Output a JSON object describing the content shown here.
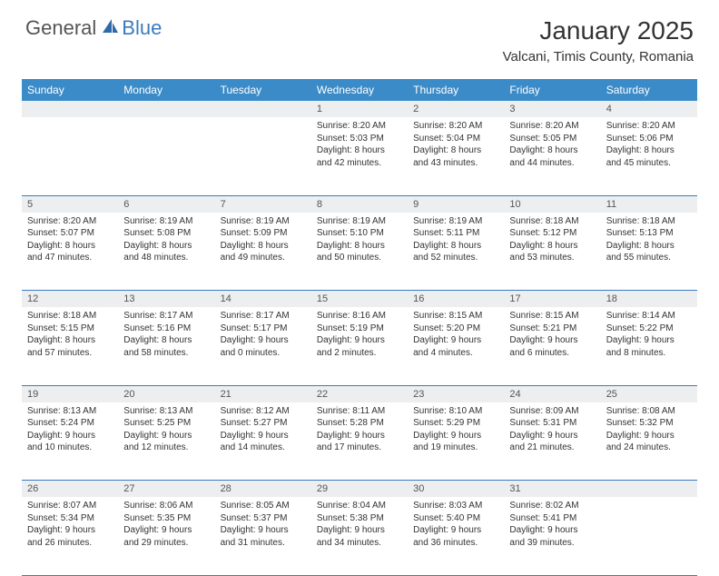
{
  "brand": {
    "general": "General",
    "blue": "Blue"
  },
  "title": "January 2025",
  "location": "Valcani, Timis County, Romania",
  "colors": {
    "header_bg": "#3b8bc8",
    "header_text": "#ffffff",
    "daynum_bg": "#eceef0",
    "border": "#3b7bbf",
    "brand_blue": "#3b7bbf",
    "text": "#333333"
  },
  "fonts": {
    "title_size": 28,
    "location_size": 15,
    "day_header_size": 12,
    "cell_size": 10
  },
  "day_headers": [
    "Sunday",
    "Monday",
    "Tuesday",
    "Wednesday",
    "Thursday",
    "Friday",
    "Saturday"
  ],
  "weeks": [
    [
      null,
      null,
      null,
      {
        "n": "1",
        "sr": "Sunrise: 8:20 AM",
        "ss": "Sunset: 5:03 PM",
        "d1": "Daylight: 8 hours",
        "d2": "and 42 minutes."
      },
      {
        "n": "2",
        "sr": "Sunrise: 8:20 AM",
        "ss": "Sunset: 5:04 PM",
        "d1": "Daylight: 8 hours",
        "d2": "and 43 minutes."
      },
      {
        "n": "3",
        "sr": "Sunrise: 8:20 AM",
        "ss": "Sunset: 5:05 PM",
        "d1": "Daylight: 8 hours",
        "d2": "and 44 minutes."
      },
      {
        "n": "4",
        "sr": "Sunrise: 8:20 AM",
        "ss": "Sunset: 5:06 PM",
        "d1": "Daylight: 8 hours",
        "d2": "and 45 minutes."
      }
    ],
    [
      {
        "n": "5",
        "sr": "Sunrise: 8:20 AM",
        "ss": "Sunset: 5:07 PM",
        "d1": "Daylight: 8 hours",
        "d2": "and 47 minutes."
      },
      {
        "n": "6",
        "sr": "Sunrise: 8:19 AM",
        "ss": "Sunset: 5:08 PM",
        "d1": "Daylight: 8 hours",
        "d2": "and 48 minutes."
      },
      {
        "n": "7",
        "sr": "Sunrise: 8:19 AM",
        "ss": "Sunset: 5:09 PM",
        "d1": "Daylight: 8 hours",
        "d2": "and 49 minutes."
      },
      {
        "n": "8",
        "sr": "Sunrise: 8:19 AM",
        "ss": "Sunset: 5:10 PM",
        "d1": "Daylight: 8 hours",
        "d2": "and 50 minutes."
      },
      {
        "n": "9",
        "sr": "Sunrise: 8:19 AM",
        "ss": "Sunset: 5:11 PM",
        "d1": "Daylight: 8 hours",
        "d2": "and 52 minutes."
      },
      {
        "n": "10",
        "sr": "Sunrise: 8:18 AM",
        "ss": "Sunset: 5:12 PM",
        "d1": "Daylight: 8 hours",
        "d2": "and 53 minutes."
      },
      {
        "n": "11",
        "sr": "Sunrise: 8:18 AM",
        "ss": "Sunset: 5:13 PM",
        "d1": "Daylight: 8 hours",
        "d2": "and 55 minutes."
      }
    ],
    [
      {
        "n": "12",
        "sr": "Sunrise: 8:18 AM",
        "ss": "Sunset: 5:15 PM",
        "d1": "Daylight: 8 hours",
        "d2": "and 57 minutes."
      },
      {
        "n": "13",
        "sr": "Sunrise: 8:17 AM",
        "ss": "Sunset: 5:16 PM",
        "d1": "Daylight: 8 hours",
        "d2": "and 58 minutes."
      },
      {
        "n": "14",
        "sr": "Sunrise: 8:17 AM",
        "ss": "Sunset: 5:17 PM",
        "d1": "Daylight: 9 hours",
        "d2": "and 0 minutes."
      },
      {
        "n": "15",
        "sr": "Sunrise: 8:16 AM",
        "ss": "Sunset: 5:19 PM",
        "d1": "Daylight: 9 hours",
        "d2": "and 2 minutes."
      },
      {
        "n": "16",
        "sr": "Sunrise: 8:15 AM",
        "ss": "Sunset: 5:20 PM",
        "d1": "Daylight: 9 hours",
        "d2": "and 4 minutes."
      },
      {
        "n": "17",
        "sr": "Sunrise: 8:15 AM",
        "ss": "Sunset: 5:21 PM",
        "d1": "Daylight: 9 hours",
        "d2": "and 6 minutes."
      },
      {
        "n": "18",
        "sr": "Sunrise: 8:14 AM",
        "ss": "Sunset: 5:22 PM",
        "d1": "Daylight: 9 hours",
        "d2": "and 8 minutes."
      }
    ],
    [
      {
        "n": "19",
        "sr": "Sunrise: 8:13 AM",
        "ss": "Sunset: 5:24 PM",
        "d1": "Daylight: 9 hours",
        "d2": "and 10 minutes."
      },
      {
        "n": "20",
        "sr": "Sunrise: 8:13 AM",
        "ss": "Sunset: 5:25 PM",
        "d1": "Daylight: 9 hours",
        "d2": "and 12 minutes."
      },
      {
        "n": "21",
        "sr": "Sunrise: 8:12 AM",
        "ss": "Sunset: 5:27 PM",
        "d1": "Daylight: 9 hours",
        "d2": "and 14 minutes."
      },
      {
        "n": "22",
        "sr": "Sunrise: 8:11 AM",
        "ss": "Sunset: 5:28 PM",
        "d1": "Daylight: 9 hours",
        "d2": "and 17 minutes."
      },
      {
        "n": "23",
        "sr": "Sunrise: 8:10 AM",
        "ss": "Sunset: 5:29 PM",
        "d1": "Daylight: 9 hours",
        "d2": "and 19 minutes."
      },
      {
        "n": "24",
        "sr": "Sunrise: 8:09 AM",
        "ss": "Sunset: 5:31 PM",
        "d1": "Daylight: 9 hours",
        "d2": "and 21 minutes."
      },
      {
        "n": "25",
        "sr": "Sunrise: 8:08 AM",
        "ss": "Sunset: 5:32 PM",
        "d1": "Daylight: 9 hours",
        "d2": "and 24 minutes."
      }
    ],
    [
      {
        "n": "26",
        "sr": "Sunrise: 8:07 AM",
        "ss": "Sunset: 5:34 PM",
        "d1": "Daylight: 9 hours",
        "d2": "and 26 minutes."
      },
      {
        "n": "27",
        "sr": "Sunrise: 8:06 AM",
        "ss": "Sunset: 5:35 PM",
        "d1": "Daylight: 9 hours",
        "d2": "and 29 minutes."
      },
      {
        "n": "28",
        "sr": "Sunrise: 8:05 AM",
        "ss": "Sunset: 5:37 PM",
        "d1": "Daylight: 9 hours",
        "d2": "and 31 minutes."
      },
      {
        "n": "29",
        "sr": "Sunrise: 8:04 AM",
        "ss": "Sunset: 5:38 PM",
        "d1": "Daylight: 9 hours",
        "d2": "and 34 minutes."
      },
      {
        "n": "30",
        "sr": "Sunrise: 8:03 AM",
        "ss": "Sunset: 5:40 PM",
        "d1": "Daylight: 9 hours",
        "d2": "and 36 minutes."
      },
      {
        "n": "31",
        "sr": "Sunrise: 8:02 AM",
        "ss": "Sunset: 5:41 PM",
        "d1": "Daylight: 9 hours",
        "d2": "and 39 minutes."
      },
      null
    ]
  ]
}
